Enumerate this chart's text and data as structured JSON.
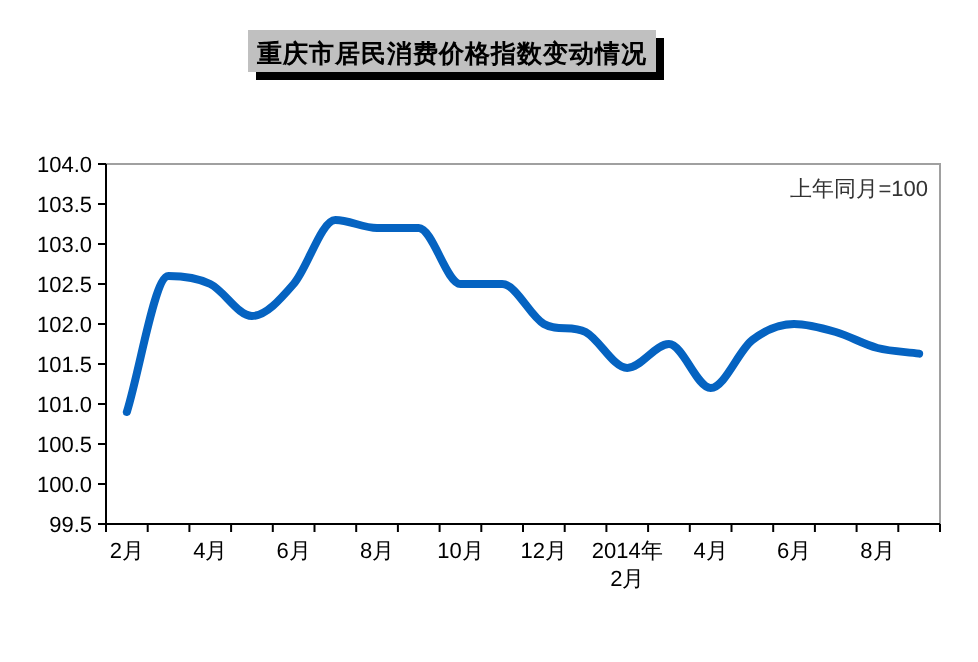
{
  "chart_data": {
    "type": "line",
    "title": "重庆市居民消费价格指数变动情况",
    "annotations": [
      "上年同月=100"
    ],
    "categories": [
      "2月",
      null,
      "4月",
      null,
      "6月",
      null,
      "8月",
      null,
      "10月",
      null,
      "12月",
      null,
      "2014年 2月",
      null,
      "4月",
      null,
      "6月",
      null,
      "8月",
      null
    ],
    "series": [
      {
        "color": "#0563c1",
        "values": [
          100.9,
          102.6,
          102.5,
          102.1,
          102.5,
          103.3,
          103.2,
          103.2,
          102.5,
          102.5,
          102.0,
          101.9,
          101.45,
          101.75,
          101.2,
          101.8,
          102.0,
          101.9,
          101.7,
          101.63
        ]
      }
    ],
    "ylim": [
      99.5,
      104
    ],
    "yticks": [
      99.5,
      {
        "value": 100,
        "label": "100.0"
      },
      100.5,
      {
        "value": 101,
        "label": "101.0"
      },
      101.5,
      {
        "value": 102,
        "label": "102.0"
      },
      102.5,
      {
        "value": 103,
        "label": "103.0"
      },
      103.5,
      {
        "value": 104,
        "label": "104.0"
      }
    ],
    "grid": false,
    "marker": "none",
    "line_style": "solid"
  }
}
